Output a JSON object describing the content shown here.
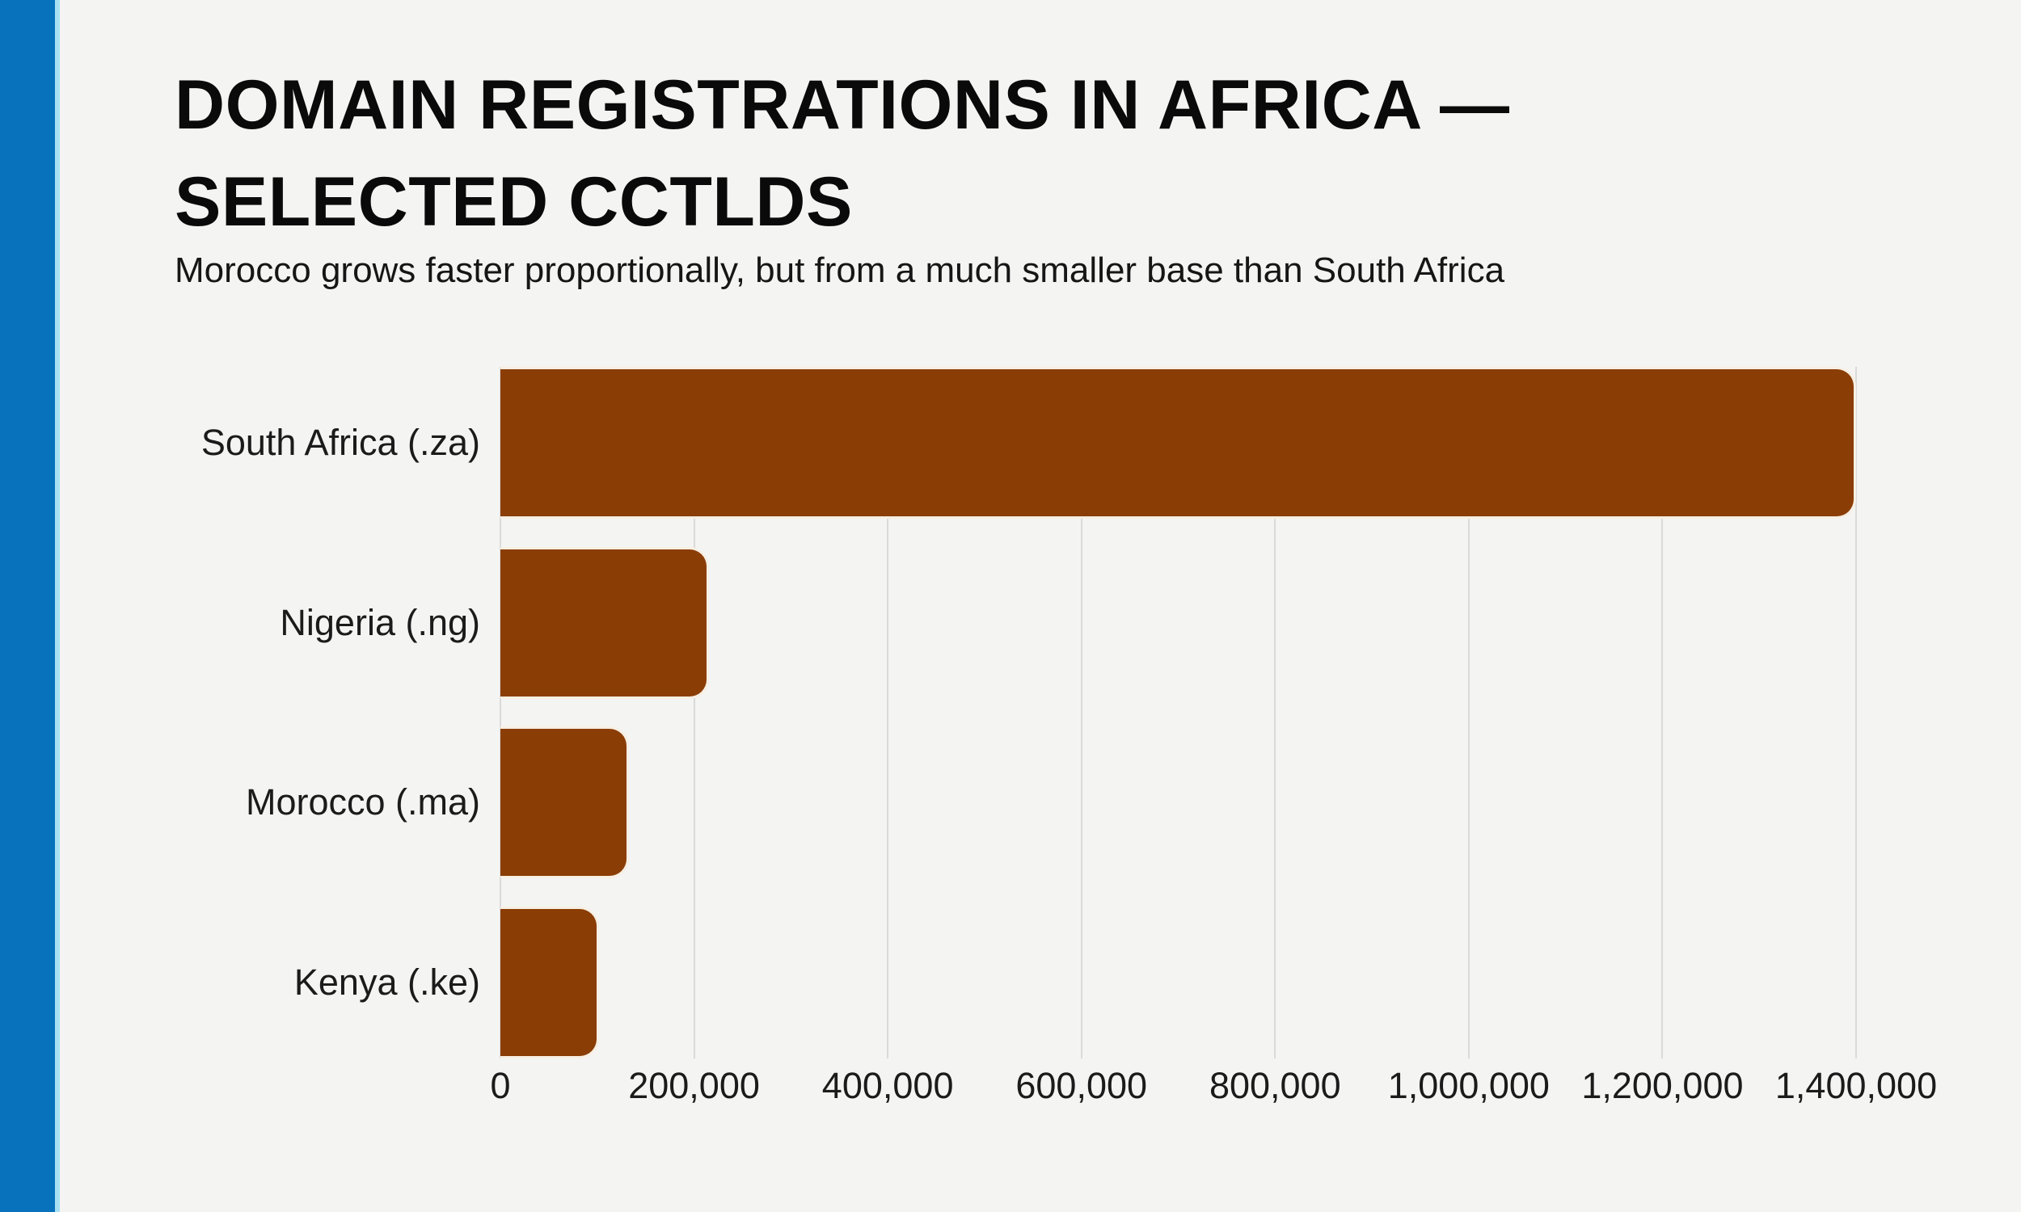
{
  "accent": {
    "stripe_color": "#0873BC",
    "stripe_edge_color": "#A9E1F4"
  },
  "header": {
    "title_line1": "DOMAIN REGISTRATIONS IN AFRICA —",
    "title_line2": "SELECTED CCTLDS",
    "subtitle": "Morocco grows faster proportionally, but from a much smaller base than South Africa"
  },
  "chart_data": {
    "type": "bar",
    "orientation": "horizontal",
    "title": "DOMAIN REGISTRATIONS IN AFRICA — SELECTED CCTLDS",
    "subtitle": "Morocco grows faster proportionally, but from a much smaller base than South Africa",
    "categories": [
      "South Africa (.za)",
      "Nigeria (.ng)",
      "Morocco (.ma)",
      "Kenya (.ke)"
    ],
    "values": [
      1400000,
      215000,
      133000,
      102000
    ],
    "xlabel": "",
    "ylabel": "",
    "xlim": [
      0,
      1400000
    ],
    "xticks": [
      0,
      200000,
      400000,
      600000,
      800000,
      1000000,
      1200000,
      1400000
    ],
    "xtick_labels": [
      "0",
      "200,000",
      "400,000",
      "600,000",
      "800,000",
      "1,000,000",
      "1,200,000",
      "1,400,000"
    ],
    "bar_color": "#8B3D06",
    "grid": true,
    "gridline_color": "#DADADA",
    "legend_position": "none"
  }
}
